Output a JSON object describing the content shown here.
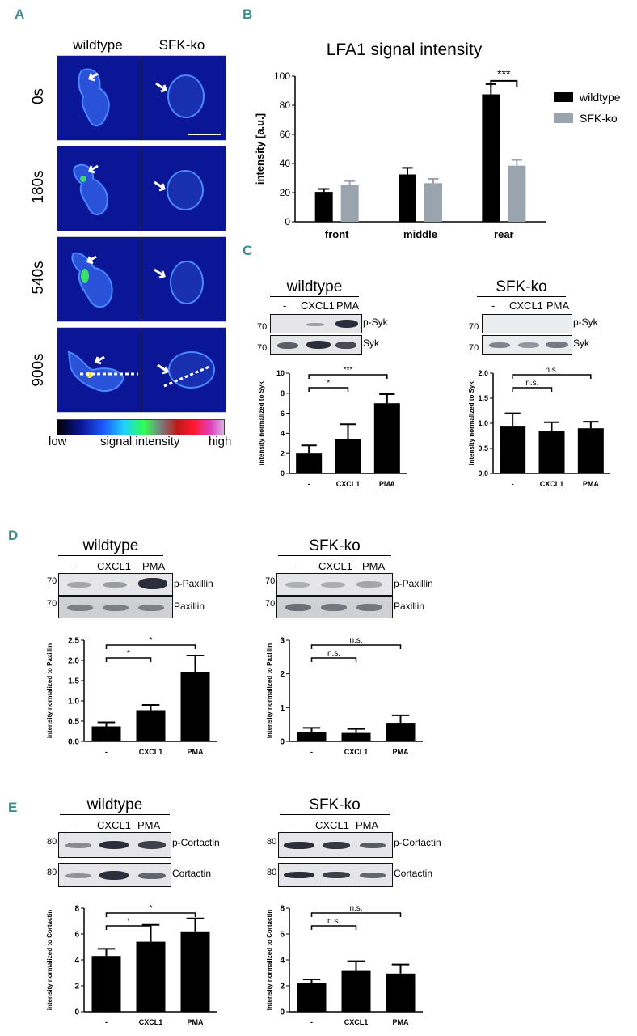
{
  "panel_letters": {
    "a": "A",
    "b": "B",
    "c": "C",
    "d": "D",
    "e": "E"
  },
  "panel_a": {
    "columns": [
      "wildtype",
      "SFK-ko"
    ],
    "timepoints": [
      "0s",
      "180s",
      "540s",
      "900s"
    ],
    "colorbar": {
      "low": "low",
      "mid": "signal intensity",
      "high": "high"
    }
  },
  "chart_data": [
    {
      "id": "B",
      "type": "bar",
      "title": "LFA1 signal intensity",
      "ylabel": "intensity [a.u.]",
      "xlabel": "",
      "categories": [
        "front",
        "middle",
        "rear"
      ],
      "ylim": [
        0,
        100
      ],
      "yticks": [
        0,
        20,
        40,
        60,
        80,
        100
      ],
      "series": [
        {
          "name": "wildtype",
          "color": "#000000",
          "values": [
            20.5,
            32.5,
            87.5
          ],
          "errors": [
            2,
            4.5,
            7
          ]
        },
        {
          "name": "SFK-ko",
          "color": "#9aa4ae",
          "values": [
            25,
            26.5,
            38.5
          ],
          "errors": [
            3,
            3,
            4
          ]
        }
      ],
      "legend": "top-right",
      "annotations": [
        {
          "text": "***",
          "between": "rear"
        }
      ]
    },
    {
      "id": "C-wt",
      "type": "bar",
      "ylabel": "intensity normalized to Syk",
      "categories": [
        "-",
        "CXCL1",
        "PMA"
      ],
      "values": [
        2,
        3.4,
        7
      ],
      "errors": [
        0.8,
        1.5,
        0.9
      ],
      "ylim": [
        0,
        10
      ],
      "yticks": [
        0,
        2,
        4,
        6,
        8,
        10
      ],
      "annotations": [
        {
          "text": "*",
          "from": "-",
          "to": "CXCL1"
        },
        {
          "text": "***",
          "from": "-",
          "to": "PMA"
        }
      ]
    },
    {
      "id": "C-ko",
      "type": "bar",
      "ylabel": "intensity normalized to Syk",
      "categories": [
        "-",
        "CXCL1",
        "PMA"
      ],
      "values": [
        0.95,
        0.85,
        0.9
      ],
      "errors": [
        0.25,
        0.17,
        0.13
      ],
      "ylim": [
        0,
        2
      ],
      "yticks": [
        "0.0",
        "0.5",
        "1.0",
        "1.5",
        "2.0"
      ],
      "annotations": [
        {
          "text": "n.s.",
          "from": "-",
          "to": "CXCL1"
        },
        {
          "text": "n.s.",
          "from": "-",
          "to": "PMA"
        }
      ]
    },
    {
      "id": "D-wt",
      "type": "bar",
      "ylabel": "intensity normalized to Paxillin",
      "categories": [
        "-",
        "CXCL1",
        "PMA"
      ],
      "values": [
        0.37,
        0.77,
        1.72
      ],
      "errors": [
        0.1,
        0.13,
        0.4
      ],
      "ylim": [
        0,
        2.5
      ],
      "yticks": [
        "0.0",
        "0.5",
        "1.0",
        "1.5",
        "2.0",
        "2.5"
      ],
      "annotations": [
        {
          "text": "*",
          "from": "-",
          "to": "CXCL1"
        },
        {
          "text": "*",
          "from": "-",
          "to": "PMA"
        }
      ]
    },
    {
      "id": "D-ko",
      "type": "bar",
      "ylabel": "intensity normalized to Paxillin",
      "categories": [
        "-",
        "CXCL1",
        "PMA"
      ],
      "values": [
        0.28,
        0.25,
        0.55
      ],
      "errors": [
        0.12,
        0.12,
        0.22
      ],
      "ylim": [
        0,
        3
      ],
      "yticks": [
        0,
        1,
        2,
        3
      ],
      "annotations": [
        {
          "text": "n.s.",
          "from": "-",
          "to": "CXCL1"
        },
        {
          "text": "n.s.",
          "from": "-",
          "to": "PMA"
        }
      ]
    },
    {
      "id": "E-wt",
      "type": "bar",
      "ylabel": "intensity normalized to Cortactin",
      "categories": [
        "-",
        "CXCL1",
        "PMA"
      ],
      "values": [
        4.3,
        5.4,
        6.2
      ],
      "errors": [
        0.55,
        1.3,
        1.0
      ],
      "ylim": [
        0,
        8
      ],
      "yticks": [
        0,
        2,
        4,
        6,
        8
      ],
      "annotations": [
        {
          "text": "*",
          "from": "-",
          "to": "CXCL1"
        },
        {
          "text": "*",
          "from": "-",
          "to": "PMA"
        }
      ]
    },
    {
      "id": "E-ko",
      "type": "bar",
      "ylabel": "intensity normalized to Cortactin",
      "categories": [
        "-",
        "CXCL1",
        "PMA"
      ],
      "values": [
        2.25,
        3.15,
        2.95
      ],
      "errors": [
        0.25,
        0.75,
        0.7
      ],
      "ylim": [
        0,
        8
      ],
      "yticks": [
        0,
        2,
        4,
        6,
        8
      ],
      "annotations": [
        {
          "text": "n.s.",
          "from": "-",
          "to": "CXCL1"
        },
        {
          "text": "n.s.",
          "from": "-",
          "to": "PMA"
        }
      ]
    }
  ],
  "blots": {
    "c_wt": {
      "title": "wildtype",
      "lanes": [
        "-",
        "CXCL1",
        "PMA"
      ],
      "mw": "70",
      "proteins": [
        "p-Syk",
        "Syk"
      ]
    },
    "c_ko": {
      "title": "SFK-ko",
      "lanes": [
        "-",
        "CXCL1",
        "PMA"
      ],
      "mw": "70",
      "proteins": [
        "p-Syk",
        "Syk"
      ]
    },
    "d_wt": {
      "title": "wildtype",
      "lanes": [
        "-",
        "CXCL1",
        "PMA"
      ],
      "mw": "70",
      "proteins": [
        "p-Paxillin",
        "Paxillin"
      ]
    },
    "d_ko": {
      "title": "SFK-ko",
      "lanes": [
        "-",
        "CXCL1",
        "PMA"
      ],
      "mw": "70",
      "proteins": [
        "p-Paxillin",
        "Paxillin"
      ]
    },
    "e_wt": {
      "title": "wildtype",
      "lanes": [
        "-",
        "CXCL1",
        "PMA"
      ],
      "mw": "80",
      "proteins": [
        "p-Cortactin",
        "Cortactin"
      ]
    },
    "e_ko": {
      "title": "SFK-ko",
      "lanes": [
        "-",
        "CXCL1",
        "PMA"
      ],
      "mw": "80",
      "proteins": [
        "p-Cortactin",
        "Cortactin"
      ]
    }
  }
}
